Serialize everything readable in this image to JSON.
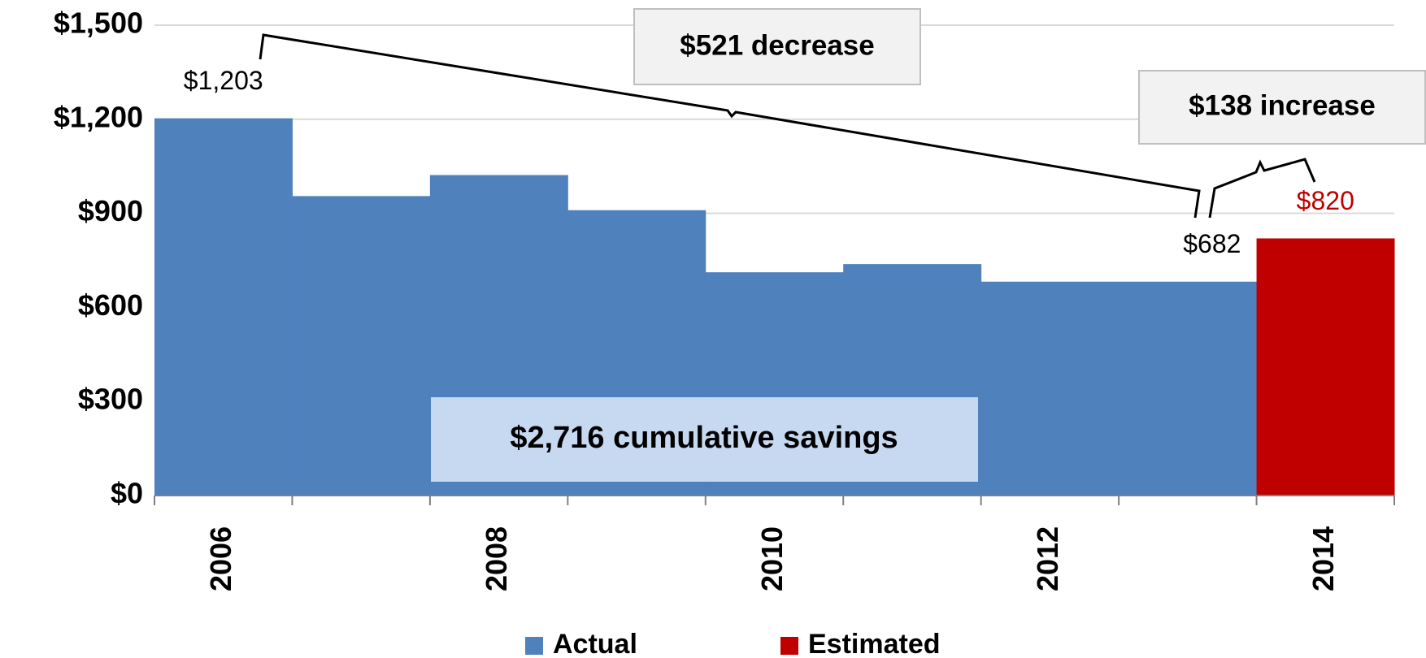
{
  "chart_data": {
    "type": "bar",
    "categories": [
      "2006",
      null,
      "2008",
      null,
      "2010",
      null,
      "2012",
      null,
      "2014"
    ],
    "series": [
      {
        "name": "Actual",
        "color": "#4f81bd",
        "values": [
          1203,
          955,
          1022,
          910,
          712,
          738,
          682,
          682,
          null
        ],
        "value_labels": [
          "$1,203",
          null,
          null,
          null,
          null,
          null,
          null,
          "$682",
          null
        ]
      },
      {
        "name": "Estimated",
        "color": "#c00000",
        "values": [
          null,
          null,
          null,
          null,
          null,
          null,
          null,
          null,
          820
        ],
        "value_labels": [
          null,
          null,
          null,
          null,
          null,
          null,
          null,
          null,
          "$820"
        ]
      }
    ],
    "ylim": [
      0,
      1500
    ],
    "yticks": [
      {
        "value": 0,
        "label": "$0"
      },
      {
        "value": 300,
        "label": "$300"
      },
      {
        "value": 600,
        "label": "$600"
      },
      {
        "value": 900,
        "label": "$900"
      },
      {
        "value": 1200,
        "label": "$1,200"
      },
      {
        "value": 1500,
        "label": "$1,500"
      }
    ],
    "grid": true,
    "legend": "bottom",
    "annotations": [
      "$521 decrease",
      "$138 increase",
      "$2,716 cumulative savings"
    ]
  }
}
